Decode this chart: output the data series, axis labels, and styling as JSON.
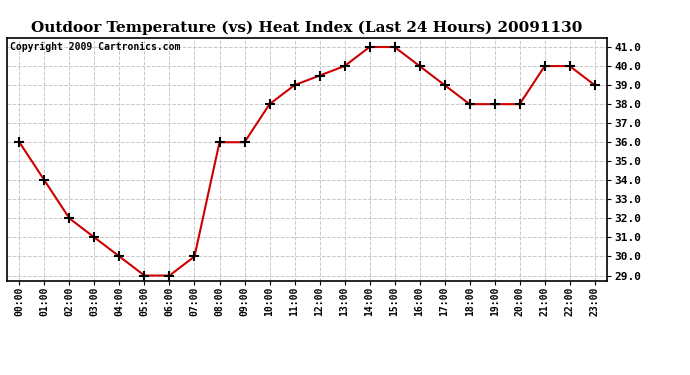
{
  "title": "Outdoor Temperature (vs) Heat Index (Last 24 Hours) 20091130",
  "copyright": "Copyright 2009 Cartronics.com",
  "x_labels": [
    "00:00",
    "01:00",
    "02:00",
    "03:00",
    "04:00",
    "05:00",
    "06:00",
    "07:00",
    "08:00",
    "09:00",
    "10:00",
    "11:00",
    "12:00",
    "13:00",
    "14:00",
    "15:00",
    "16:00",
    "17:00",
    "18:00",
    "19:00",
    "20:00",
    "21:00",
    "22:00",
    "23:00"
  ],
  "y_values": [
    36.0,
    34.0,
    32.0,
    31.0,
    30.0,
    29.0,
    29.0,
    30.0,
    36.0,
    36.0,
    38.0,
    39.0,
    39.5,
    40.0,
    41.0,
    41.0,
    40.0,
    39.0,
    38.0,
    38.0,
    38.0,
    40.0,
    40.0,
    39.0
  ],
  "ylim_min": 28.7,
  "ylim_max": 41.5,
  "yticks": [
    29.0,
    30.0,
    31.0,
    32.0,
    33.0,
    34.0,
    35.0,
    36.0,
    37.0,
    38.0,
    39.0,
    40.0,
    41.0
  ],
  "line_color": "#cc0000",
  "marker": "+",
  "marker_color": "#000000",
  "bg_color": "#ffffff",
  "grid_color": "#c8c8c8",
  "title_fontsize": 11,
  "copyright_fontsize": 7,
  "tick_fontsize": 8,
  "xtick_fontsize": 7
}
